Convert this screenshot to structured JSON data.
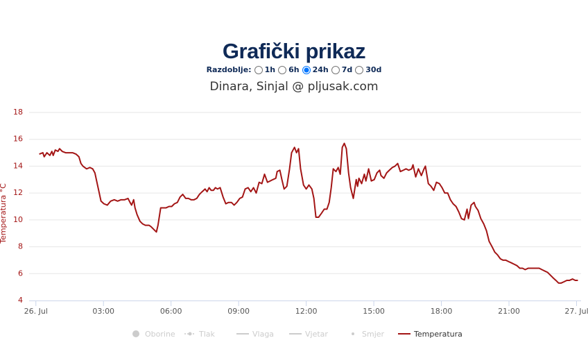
{
  "chart_data": {
    "type": "line",
    "title": "Grafički prikaz",
    "period_label": "Razdoblje:",
    "periods": [
      "1h",
      "6h",
      "24h",
      "7d",
      "30d"
    ],
    "selected_period_index": 2,
    "subtitle": "Dinara, Sinjal @ pljusak.com",
    "y_label": "Temperatura °C",
    "xlim": [
      -0.3,
      24.2
    ],
    "xticks": [
      {
        "value": 0,
        "label": "26. Jul"
      },
      {
        "value": 3,
        "label": "03:00"
      },
      {
        "value": 6,
        "label": "06:00"
      },
      {
        "value": 9,
        "label": "09:00"
      },
      {
        "value": 12,
        "label": "12:00"
      },
      {
        "value": 15,
        "label": "15:00"
      },
      {
        "value": 18,
        "label": "18:00"
      },
      {
        "value": 21,
        "label": "21:00"
      },
      {
        "value": 24,
        "label": "27. Jul"
      }
    ],
    "ylim": [
      4,
      18
    ],
    "yticks": [
      4,
      6,
      8,
      10,
      12,
      14,
      16,
      18
    ],
    "grid": true,
    "hidden_series": [
      {
        "name": "Oborine",
        "marker": "circle"
      },
      {
        "name": "Tlak",
        "marker": "dash-dot"
      },
      {
        "name": "Vlaga",
        "marker": "line"
      },
      {
        "name": "Vjetar",
        "marker": "line"
      },
      {
        "name": "Smjer",
        "marker": "dot"
      }
    ],
    "x": [
      0.15,
      0.31,
      0.37,
      0.49,
      0.62,
      0.71,
      0.77,
      0.86,
      0.98,
      1.05,
      1.17,
      1.32,
      1.48,
      1.63,
      1.78,
      1.91,
      2.0,
      2.09,
      2.25,
      2.4,
      2.52,
      2.62,
      2.71,
      2.8,
      2.89,
      3.02,
      3.17,
      3.32,
      3.48,
      3.63,
      3.78,
      3.94,
      4.09,
      4.18,
      4.25,
      4.34,
      4.4,
      4.49,
      4.62,
      4.74,
      4.86,
      5.02,
      5.11,
      5.23,
      5.35,
      5.42,
      5.54,
      5.66,
      5.78,
      5.91,
      6.03,
      6.15,
      6.28,
      6.4,
      6.52,
      6.65,
      6.77,
      6.89,
      7.02,
      7.14,
      7.26,
      7.38,
      7.51,
      7.6,
      7.69,
      7.78,
      7.88,
      7.97,
      8.06,
      8.18,
      8.31,
      8.43,
      8.55,
      8.68,
      8.8,
      8.92,
      9.05,
      9.17,
      9.29,
      9.42,
      9.54,
      9.66,
      9.78,
      9.91,
      10.03,
      10.15,
      10.28,
      10.4,
      10.52,
      10.65,
      10.71,
      10.83,
      10.92,
      11.02,
      11.14,
      11.26,
      11.35,
      11.48,
      11.57,
      11.66,
      11.75,
      11.88,
      12.0,
      12.12,
      12.25,
      12.34,
      12.43,
      12.55,
      12.68,
      12.8,
      12.92,
      13.02,
      13.11,
      13.2,
      13.32,
      13.42,
      13.51,
      13.6,
      13.69,
      13.78,
      13.88,
      13.97,
      14.09,
      14.22,
      14.28,
      14.34,
      14.46,
      14.58,
      14.65,
      14.77,
      14.89,
      15.02,
      15.14,
      15.26,
      15.32,
      15.45,
      15.57,
      15.69,
      15.82,
      15.94,
      16.06,
      16.18,
      16.31,
      16.43,
      16.55,
      16.68,
      16.74,
      16.86,
      16.98,
      17.11,
      17.23,
      17.29,
      17.42,
      17.54,
      17.66,
      17.78,
      17.91,
      18.03,
      18.15,
      18.28,
      18.4,
      18.52,
      18.65,
      18.77,
      18.89,
      19.02,
      19.14,
      19.2,
      19.32,
      19.45,
      19.51,
      19.63,
      19.75,
      19.88,
      20.0,
      20.12,
      20.25,
      20.37,
      20.49,
      20.62,
      20.74,
      20.86,
      20.98,
      21.11,
      21.23,
      21.35,
      21.48,
      21.6,
      21.72,
      21.85,
      21.97,
      22.09,
      22.22,
      22.34,
      22.46,
      22.58,
      22.71,
      22.83,
      22.95,
      23.08,
      23.2,
      23.32,
      23.45,
      23.57,
      23.69,
      23.82,
      23.94,
      24.06
    ],
    "series": [
      {
        "name": "Temperatura",
        "color": "#a31515",
        "values": [
          14.9,
          15.0,
          14.7,
          15.0,
          14.8,
          15.1,
          14.8,
          15.2,
          15.1,
          15.3,
          15.1,
          15.0,
          15.0,
          15.0,
          14.9,
          14.7,
          14.2,
          14.0,
          13.8,
          13.9,
          13.8,
          13.5,
          12.8,
          12.1,
          11.4,
          11.2,
          11.1,
          11.4,
          11.5,
          11.4,
          11.5,
          11.5,
          11.6,
          11.3,
          11.1,
          11.5,
          10.9,
          10.4,
          9.9,
          9.7,
          9.6,
          9.6,
          9.5,
          9.3,
          9.1,
          9.6,
          10.9,
          10.9,
          10.9,
          11.0,
          11.0,
          11.2,
          11.3,
          11.7,
          11.9,
          11.6,
          11.6,
          11.5,
          11.5,
          11.6,
          11.9,
          12.1,
          12.3,
          12.1,
          12.4,
          12.2,
          12.2,
          12.4,
          12.3,
          12.4,
          11.7,
          11.2,
          11.3,
          11.3,
          11.1,
          11.3,
          11.6,
          11.7,
          12.3,
          12.4,
          12.1,
          12.4,
          12.0,
          12.8,
          12.7,
          13.4,
          12.8,
          12.9,
          13.0,
          13.1,
          13.6,
          13.7,
          13.0,
          12.3,
          12.5,
          13.8,
          15.0,
          15.4,
          15.0,
          15.3,
          13.8,
          12.6,
          12.3,
          12.6,
          12.3,
          11.6,
          10.2,
          10.2,
          10.5,
          10.8,
          10.8,
          11.3,
          12.4,
          13.8,
          13.6,
          13.9,
          13.4,
          15.4,
          15.7,
          15.3,
          13.5,
          12.4,
          11.6,
          13.0,
          12.5,
          13.1,
          12.7,
          13.4,
          12.9,
          13.8,
          12.9,
          13.0,
          13.5,
          13.7,
          13.3,
          13.1,
          13.5,
          13.7,
          13.9,
          14.0,
          14.2,
          13.6,
          13.7,
          13.8,
          13.7,
          13.8,
          14.1,
          13.2,
          13.8,
          13.3,
          13.8,
          14.0,
          12.7,
          12.5,
          12.2,
          12.8,
          12.7,
          12.4,
          12.0,
          12.0,
          11.5,
          11.2,
          11.0,
          10.6,
          10.1,
          10.0,
          10.8,
          10.1,
          11.1,
          11.3,
          11.0,
          10.7,
          10.1,
          9.7,
          9.2,
          8.4,
          8.0,
          7.6,
          7.4,
          7.1,
          7.0,
          7.0,
          6.9,
          6.8,
          6.7,
          6.6,
          6.4,
          6.4,
          6.3,
          6.4,
          6.4,
          6.4,
          6.4,
          6.4,
          6.3,
          6.2,
          6.1,
          5.9,
          5.7,
          5.5,
          5.3,
          5.3,
          5.4,
          5.5,
          5.5,
          5.6,
          5.5,
          5.5
        ]
      }
    ]
  }
}
